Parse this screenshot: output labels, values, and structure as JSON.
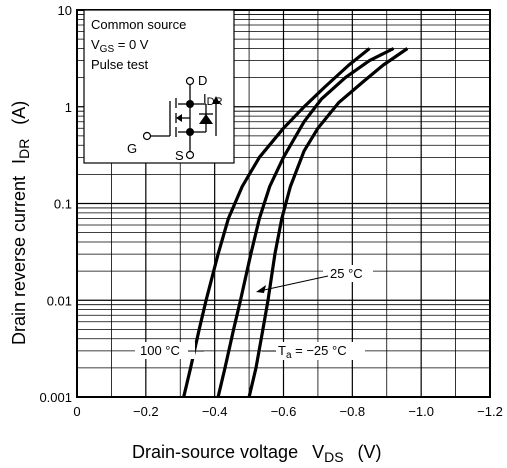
{
  "chart_data": {
    "type": "line",
    "xlabel_main": "Drain-source voltage",
    "xlabel_sym": "V",
    "xlabel_sub": "DS",
    "xlabel_unit": "(V)",
    "ylabel_main": "Drain reverse current",
    "ylabel_sym": "I",
    "ylabel_sub": "DR",
    "ylabel_unit": "(A)",
    "x_scale": "linear",
    "y_scale": "log",
    "xlim": [
      0,
      -1.2
    ],
    "ylim": [
      0.001,
      10
    ],
    "x_ticks": [
      "0",
      "−0.2",
      "−0.4",
      "−0.6",
      "−0.8",
      "−1.0",
      "−1.2"
    ],
    "y_ticks": [
      "0.001",
      "0.01",
      "0.1",
      "1",
      "10"
    ],
    "grid": true,
    "series": [
      {
        "name": "100 °C",
        "points": [
          [
            -0.31,
            0.001
          ],
          [
            -0.33,
            0.002
          ],
          [
            -0.355,
            0.005
          ],
          [
            -0.375,
            0.01
          ],
          [
            -0.41,
            0.03
          ],
          [
            -0.44,
            0.07
          ],
          [
            -0.48,
            0.15
          ],
          [
            -0.53,
            0.3
          ],
          [
            -0.6,
            0.6
          ],
          [
            -0.66,
            1.0
          ],
          [
            -0.72,
            1.6
          ],
          [
            -0.79,
            2.7
          ],
          [
            -0.85,
            4.0
          ]
        ]
      },
      {
        "name": "25 °C",
        "points": [
          [
            -0.41,
            0.001
          ],
          [
            -0.43,
            0.002
          ],
          [
            -0.455,
            0.005
          ],
          [
            -0.475,
            0.01
          ],
          [
            -0.505,
            0.03
          ],
          [
            -0.53,
            0.07
          ],
          [
            -0.56,
            0.15
          ],
          [
            -0.6,
            0.3
          ],
          [
            -0.66,
            0.7
          ],
          [
            -0.71,
            1.2
          ],
          [
            -0.78,
            2.0
          ],
          [
            -0.85,
            3.0
          ],
          [
            -0.92,
            4.0
          ]
        ]
      },
      {
        "name": "−25 °C",
        "points": [
          [
            -0.5,
            0.001
          ],
          [
            -0.52,
            0.002
          ],
          [
            -0.54,
            0.005
          ],
          [
            -0.555,
            0.01
          ],
          [
            -0.575,
            0.03
          ],
          [
            -0.595,
            0.07
          ],
          [
            -0.62,
            0.15
          ],
          [
            -0.66,
            0.35
          ],
          [
            -0.7,
            0.6
          ],
          [
            -0.76,
            1.1
          ],
          [
            -0.83,
            1.8
          ],
          [
            -0.89,
            2.7
          ],
          [
            -0.96,
            4.0
          ]
        ]
      }
    ],
    "annotations": {
      "t100": "100 °C",
      "t25": "25 °C",
      "tm25_sym": "T",
      "tm25_sub": "a",
      "tm25_rest": " = −25 °C"
    },
    "inset": {
      "line1": "Common source",
      "line2_sym": "V",
      "line2_sub": "GS",
      "line2_rest": " = 0 V",
      "line3": "Pulse test",
      "pin_d": "D",
      "pin_g": "G",
      "pin_s": "S",
      "cur_sym": "I",
      "cur_sub": "DR"
    },
    "line_color": "#000000"
  }
}
